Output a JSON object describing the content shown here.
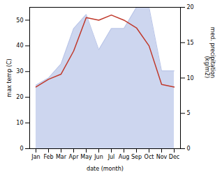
{
  "chart_data": {
    "type": "line",
    "xlabel": "date (month)",
    "ylabel": "max temp (C)",
    "y2label": "med. precipitation\n (kg/m2)",
    "categories": [
      "Jan",
      "Feb",
      "Mar",
      "Apr",
      "May",
      "Jun",
      "Jul",
      "Aug",
      "Sep",
      "Oct",
      "Nov",
      "Dec"
    ],
    "series": [
      {
        "type": "area",
        "axis": "y2",
        "color": "#b8c4e8",
        "values": [
          9,
          10,
          12,
          17,
          19,
          14,
          17,
          17,
          20,
          20,
          11,
          11
        ]
      },
      {
        "type": "line",
        "color": "#c0392b",
        "values": [
          24,
          27,
          29,
          38,
          51,
          50,
          52,
          50,
          47,
          40,
          25,
          24
        ]
      }
    ],
    "ylim": [
      0,
      55
    ],
    "yticks": [
      0,
      10,
      20,
      30,
      40,
      50
    ],
    "y2lim": [
      0,
      20
    ],
    "y2ticks": [
      0,
      5,
      10,
      15,
      20
    ]
  }
}
